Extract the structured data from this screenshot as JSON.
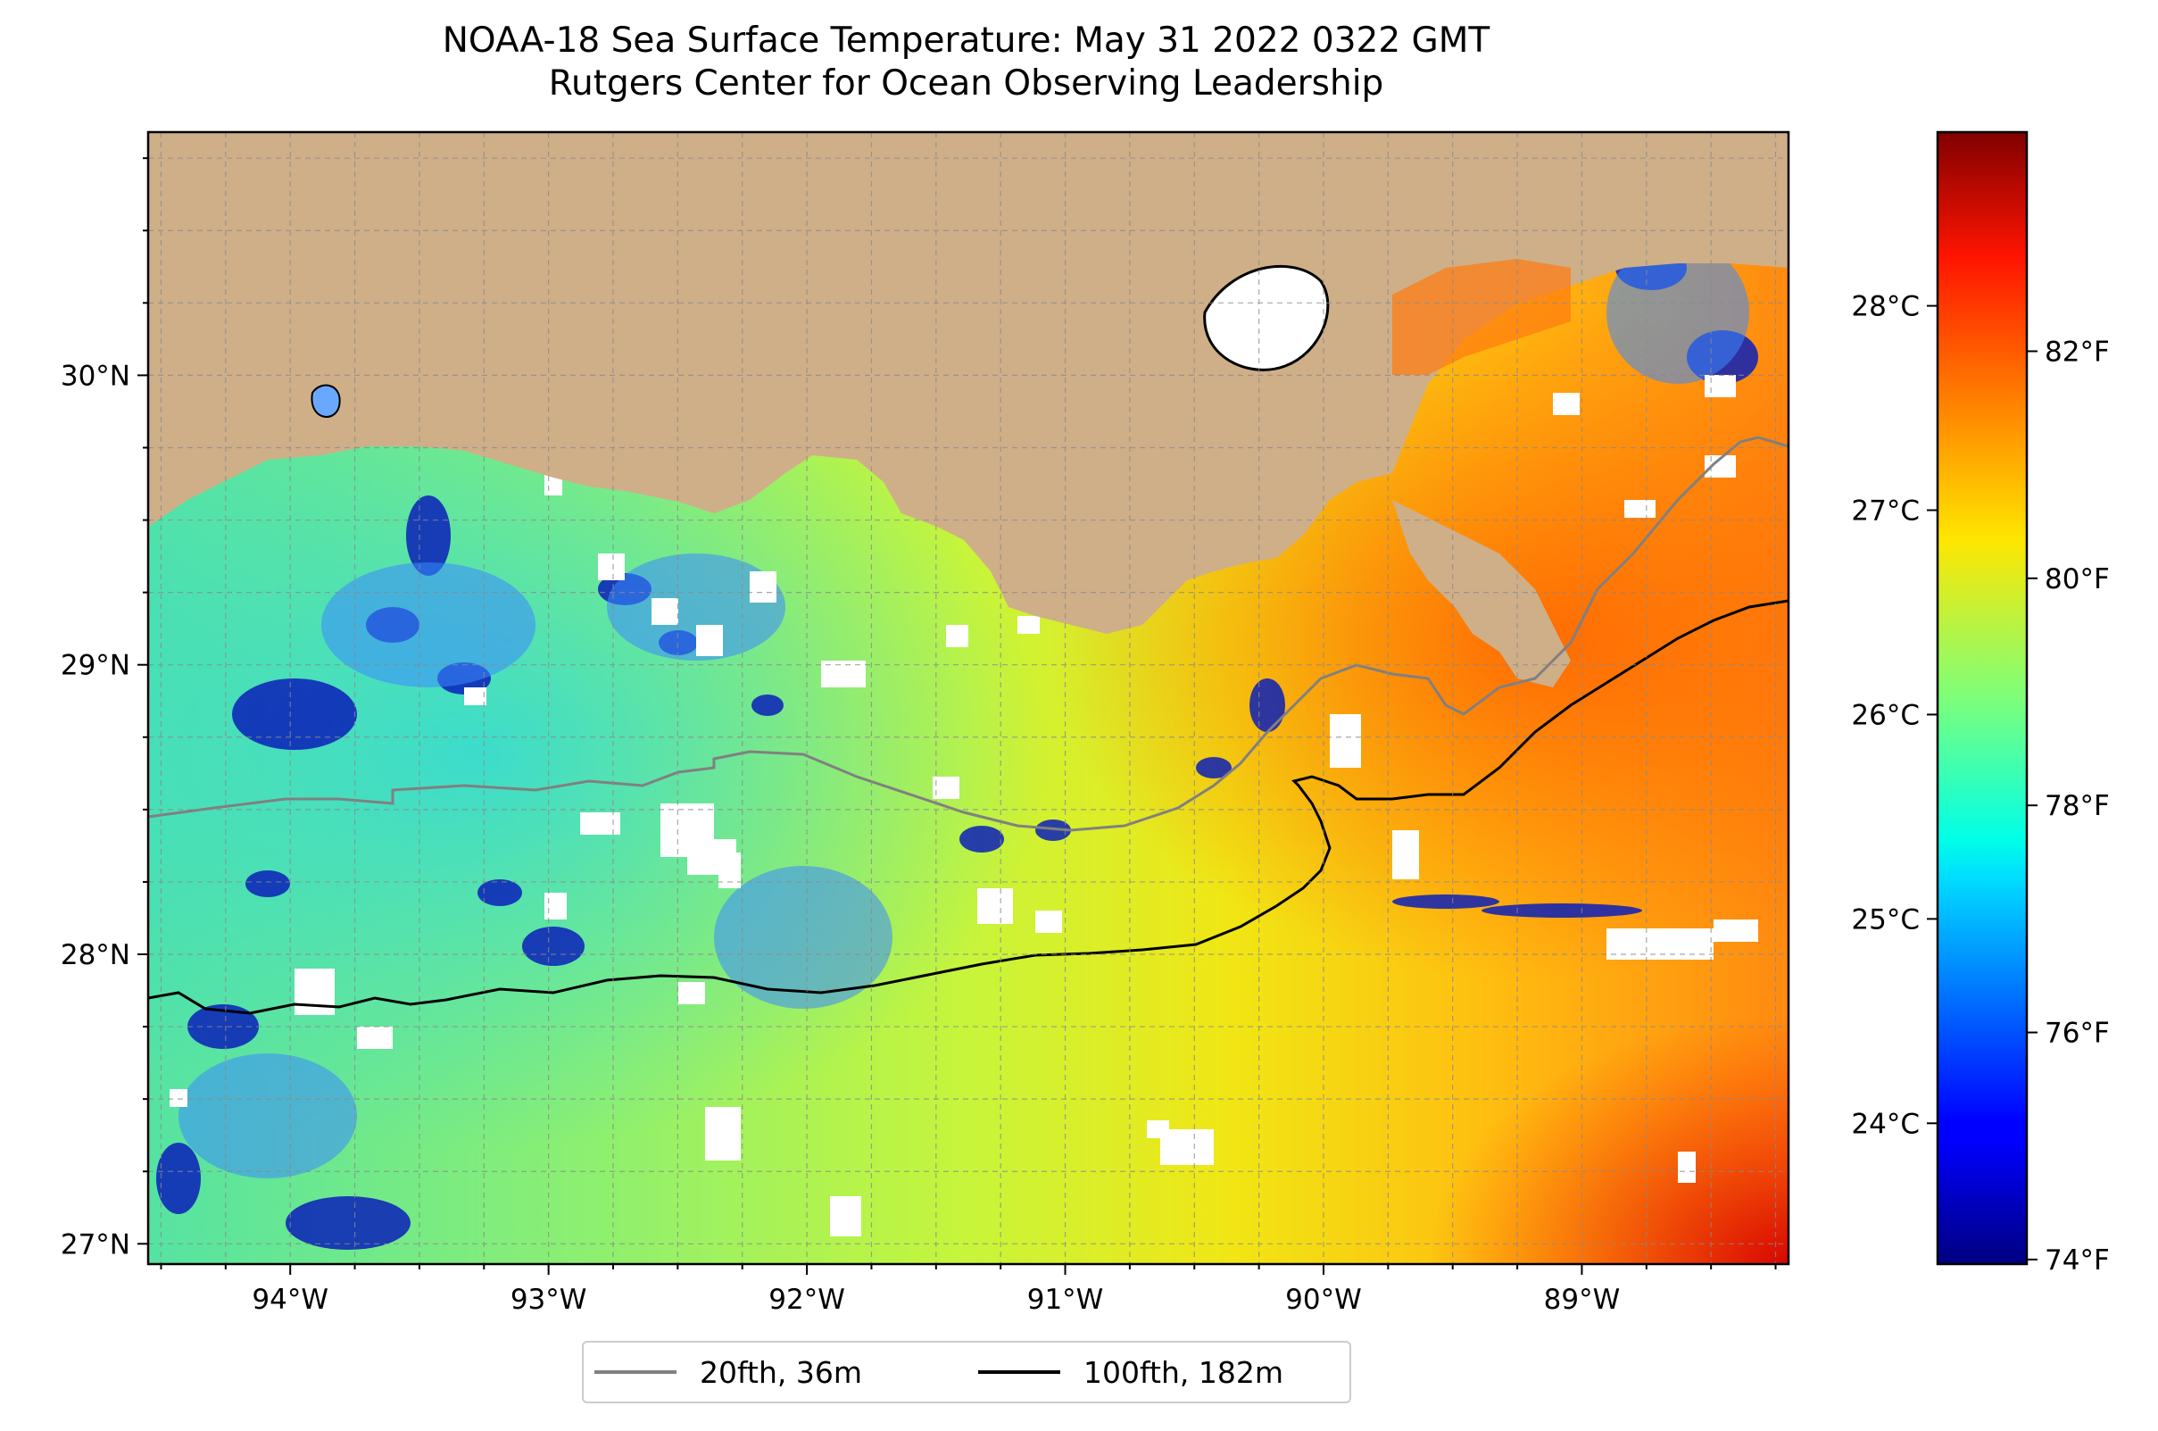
{
  "title_line1": "NOAA-18 Sea Surface Temperature: May 31 2022 0322 GMT",
  "title_line2": "Rutgers Center for Ocean Observing Leadership",
  "map": {
    "lon_range": [
      -94.55,
      -88.2
    ],
    "lat_range": [
      26.93,
      30.84
    ],
    "land_color": "#cfaf88",
    "graticule": "dashed grey, 0.25° spacing",
    "lon_ticks": [
      {
        "value": -94,
        "label": "94°W"
      },
      {
        "value": -93,
        "label": "93°W"
      },
      {
        "value": -92,
        "label": "92°W"
      },
      {
        "value": -91,
        "label": "91°W"
      },
      {
        "value": -90,
        "label": "90°W"
      },
      {
        "value": -89,
        "label": "89°W"
      }
    ],
    "lat_ticks": [
      {
        "value": 27,
        "label": "27°N"
      },
      {
        "value": 28,
        "label": "28°N"
      },
      {
        "value": 29,
        "label": "29°N"
      },
      {
        "value": 30,
        "label": "30°N"
      }
    ]
  },
  "colorbar": {
    "colormap": "jet",
    "range_f": [
      73.96,
      83.93
    ],
    "celsius_ticks": [
      {
        "value": 24,
        "label": "24°C"
      },
      {
        "value": 25,
        "label": "25°C"
      },
      {
        "value": 26,
        "label": "26°C"
      },
      {
        "value": 27,
        "label": "27°C"
      },
      {
        "value": 28,
        "label": "28°C"
      }
    ],
    "fahrenheit_ticks": [
      {
        "value": 74,
        "label": "74°F"
      },
      {
        "value": 76,
        "label": "76°F"
      },
      {
        "value": 78,
        "label": "78°F"
      },
      {
        "value": 80,
        "label": "80°F"
      },
      {
        "value": 82,
        "label": "82°F"
      }
    ]
  },
  "legend": {
    "items": [
      {
        "label": "20fth, 36m",
        "color": "#808080"
      },
      {
        "label": "100fth, 182m",
        "color": "#000000"
      }
    ]
  }
}
